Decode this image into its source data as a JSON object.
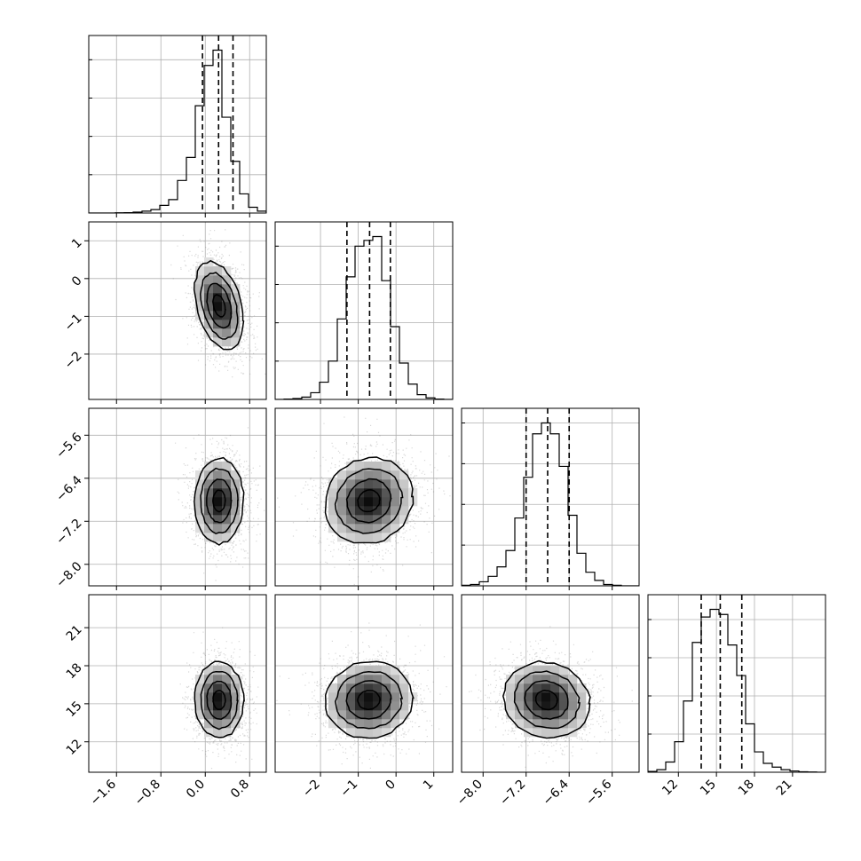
{
  "chart_data": {
    "type": "corner",
    "grid": true,
    "parameters": [
      {
        "range": [
          -2.1,
          1.1
        ],
        "ticks": [
          -1.6,
          -0.8,
          0.0,
          0.8
        ],
        "tick_labels": [
          "−1.6",
          "−0.8",
          "0.0",
          "0.8"
        ],
        "mean": 0.25,
        "sd": 0.22,
        "quantiles": [
          -0.05,
          0.24,
          0.5
        ],
        "hist": {
          "edges": [
            -2.1,
            -1.94,
            -1.78,
            -1.62,
            -1.46,
            -1.3,
            -1.14,
            -0.98,
            -0.82,
            -0.66,
            -0.5,
            -0.34,
            -0.18,
            -0.02,
            0.14,
            0.3,
            0.46,
            0.62,
            0.78,
            0.94,
            1.1
          ],
          "counts": [
            0,
            0,
            0,
            1,
            2,
            5,
            10,
            18,
            40,
            70,
            170,
            290,
            560,
            770,
            850,
            500,
            270,
            100,
            30,
            10
          ]
        }
      },
      {
        "range": [
          -3.2,
          1.5
        ],
        "ticks": [
          -2,
          -1,
          0,
          1
        ],
        "tick_labels": [
          "−2",
          "−1",
          "0",
          "1"
        ],
        "mean": -0.72,
        "sd": 0.58,
        "quantiles": [
          -1.3,
          -0.7,
          -0.15
        ],
        "hist": {
          "edges": [
            -3.2,
            -2.965,
            -2.73,
            -2.495,
            -2.26,
            -2.025,
            -1.79,
            -1.555,
            -1.32,
            -1.085,
            -0.85,
            -0.615,
            -0.38,
            -0.145,
            0.09,
            0.325,
            0.56,
            0.795,
            1.03,
            1.265,
            1.5
          ],
          "counts": [
            0,
            2,
            5,
            12,
            35,
            90,
            200,
            420,
            640,
            800,
            830,
            850,
            620,
            380,
            190,
            80,
            25,
            8,
            2,
            0
          ]
        }
      },
      {
        "range": [
          -8.4,
          -5.1
        ],
        "ticks": [
          -8.0,
          -7.2,
          -6.4,
          -5.6
        ],
        "tick_labels": [
          "−8.0",
          "−7.2",
          "−6.4",
          "−5.6"
        ],
        "mean": -6.82,
        "sd": 0.4,
        "quantiles": [
          -7.2,
          -6.8,
          -6.4
        ],
        "hist": {
          "edges": [
            -8.4,
            -8.235,
            -8.07,
            -7.905,
            -7.74,
            -7.575,
            -7.41,
            -7.245,
            -7.08,
            -6.915,
            -6.75,
            -6.585,
            -6.42,
            -6.255,
            -6.09,
            -5.925,
            -5.76,
            -5.595,
            -5.43,
            -5.265,
            -5.1
          ],
          "counts": [
            2,
            5,
            15,
            35,
            70,
            130,
            250,
            400,
            560,
            600,
            560,
            440,
            260,
            120,
            50,
            20,
            5,
            2,
            0,
            0
          ]
        }
      },
      {
        "range": [
          9.6,
          23.6
        ],
        "ticks": [
          12,
          15,
          18,
          21
        ],
        "tick_labels": [
          "12",
          "15",
          "18",
          "21"
        ],
        "mean": 15.3,
        "sd": 1.5,
        "quantiles": [
          13.8,
          15.3,
          17.0
        ],
        "hist": {
          "edges": [
            9.6,
            10.3,
            11.0,
            11.7,
            12.4,
            13.1,
            13.8,
            14.5,
            15.2,
            15.9,
            16.6,
            17.3,
            18.0,
            18.7,
            19.4,
            20.1,
            20.8,
            21.5,
            22.2,
            22.9,
            23.6
          ],
          "counts": [
            3,
            10,
            40,
            120,
            280,
            510,
            610,
            640,
            620,
            500,
            380,
            190,
            80,
            35,
            20,
            10,
            5,
            2,
            1,
            0
          ]
        }
      }
    ]
  }
}
